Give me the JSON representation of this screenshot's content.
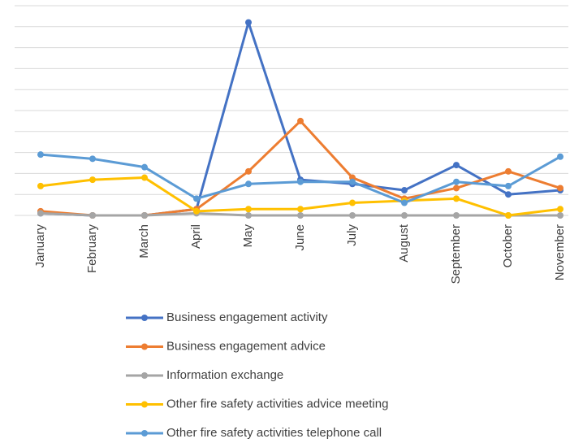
{
  "chart_data": {
    "type": "line",
    "categories": [
      "January",
      "February",
      "March",
      "April",
      "May",
      "June",
      "July",
      "August",
      "September",
      "October",
      "November"
    ],
    "series": [
      {
        "name": "Business engagement activity",
        "color": "#4472c4",
        "values": [
          0.1,
          0,
          0,
          0.3,
          9.2,
          1.7,
          1.5,
          1.2,
          2.4,
          1.0,
          1.2
        ]
      },
      {
        "name": "Business engagement advice",
        "color": "#ed7d31",
        "values": [
          0.2,
          0,
          0,
          0.3,
          2.1,
          4.5,
          1.8,
          0.8,
          1.3,
          2.1,
          1.3
        ]
      },
      {
        "name": "Information exchange",
        "color": "#a5a5a5",
        "values": [
          0.1,
          0,
          0,
          0.1,
          0,
          0,
          0,
          0,
          0,
          0,
          0
        ]
      },
      {
        "name": "Other fire safety activities advice meeting",
        "color": "#ffc000",
        "values": [
          1.4,
          1.7,
          1.8,
          0.2,
          0.3,
          0.3,
          0.6,
          0.7,
          0.8,
          0,
          0.3
        ]
      },
      {
        "name": "Other fire safety activities telephone call",
        "color": "#5b9bd5",
        "values": [
          2.9,
          2.7,
          2.3,
          0.8,
          1.5,
          1.6,
          1.6,
          0.6,
          1.6,
          1.4,
          2.8
        ]
      }
    ],
    "ylim": [
      0,
      10
    ],
    "yticks": [
      0,
      1,
      2,
      3,
      4,
      5,
      6,
      7,
      8,
      9,
      10
    ],
    "grid": true,
    "legend": "bottom"
  }
}
